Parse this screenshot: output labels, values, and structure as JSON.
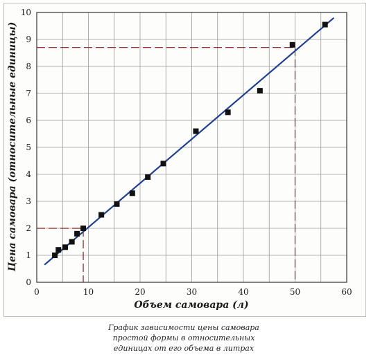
{
  "chart_data": {
    "type": "scatter",
    "xlabel": "Объем самовара (л)",
    "ylabel": "Цена самовара (относительные единицы)",
    "xlim": [
      0,
      60
    ],
    "ylim": [
      0,
      10
    ],
    "x_ticks": [
      "0",
      "10",
      "20",
      "30",
      "40",
      "50",
      "60"
    ],
    "y_ticks": [
      "0",
      "1",
      "2",
      "3",
      "4",
      "5",
      "6",
      "7",
      "8",
      "9",
      "10"
    ],
    "grid": true,
    "points": [
      {
        "x": 3.5,
        "y": 1.0
      },
      {
        "x": 4.2,
        "y": 1.2
      },
      {
        "x": 5.5,
        "y": 1.3
      },
      {
        "x": 6.8,
        "y": 1.5
      },
      {
        "x": 7.8,
        "y": 1.8
      },
      {
        "x": 9.0,
        "y": 2.0
      },
      {
        "x": 12.5,
        "y": 2.5
      },
      {
        "x": 15.5,
        "y": 2.9
      },
      {
        "x": 18.5,
        "y": 3.3
      },
      {
        "x": 21.5,
        "y": 3.9
      },
      {
        "x": 24.5,
        "y": 4.4
      },
      {
        "x": 30.8,
        "y": 5.6
      },
      {
        "x": 37.0,
        "y": 6.3
      },
      {
        "x": 43.2,
        "y": 7.1
      },
      {
        "x": 49.5,
        "y": 8.8
      },
      {
        "x": 55.8,
        "y": 9.55
      }
    ],
    "trend_line": {
      "x": [
        1.5,
        57.5
      ],
      "y": [
        0.65,
        9.8
      ]
    },
    "reference_lines": [
      {
        "x": 9,
        "y": 2
      },
      {
        "x": 50,
        "y": 8.7
      }
    ],
    "colors": {
      "line": "#1f3f8f",
      "points": "#111111",
      "reference": "#8b1a1a",
      "grid": "#9a9a9a"
    }
  },
  "caption_lines": [
    "График зависимости цены самовара",
    "простой формы в относительных",
    "единицах от его объема в литрах"
  ]
}
